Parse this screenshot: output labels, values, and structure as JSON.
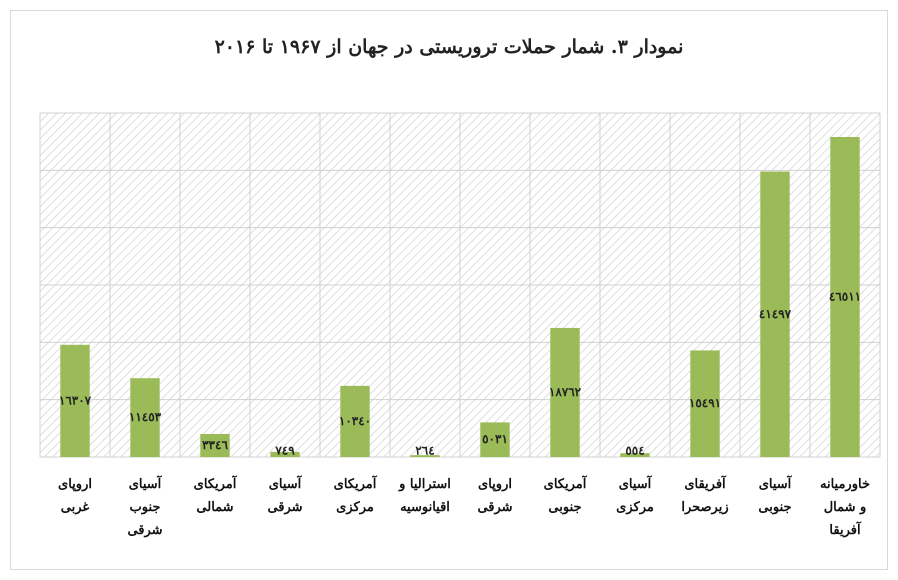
{
  "chart_data": {
    "type": "bar",
    "title": "نمودار ۳. شمار حملات تروریستی در جهان از ۱۹۶۷ تا ۲۰۱۶",
    "categories": [
      "اروپای غربی",
      "آسیای جنوب شرقی",
      "آمریکای شمالی",
      "آسیای شرقی",
      "آمریکای مرکزی",
      "استرالیا و اقیانوسیه",
      "اروپای شرقی",
      "آمریکای جنوبی",
      "آسیای مرکزی",
      "آفریقای زیرصحرا",
      "آسیای جنوبی",
      "خاورمیانه و شمال آفریقا"
    ],
    "values": [
      16307,
      11453,
      3346,
      749,
      10340,
      264,
      5031,
      18762,
      554,
      15491,
      41497,
      46511
    ],
    "value_labels": [
      "١٦٣٠٧",
      "١١٤٥٣",
      "٣٣٤٦",
      "٧٤٩",
      "١٠٣٤٠",
      "٢٦٤",
      "٥٠٣١",
      "١٨٧٦٢",
      "٥٥٤",
      "١٥٤٩١",
      "٤١٤٩٧",
      "٤٦٥١١"
    ],
    "color": "#9bbb59",
    "ylim": [
      0,
      50000
    ]
  }
}
